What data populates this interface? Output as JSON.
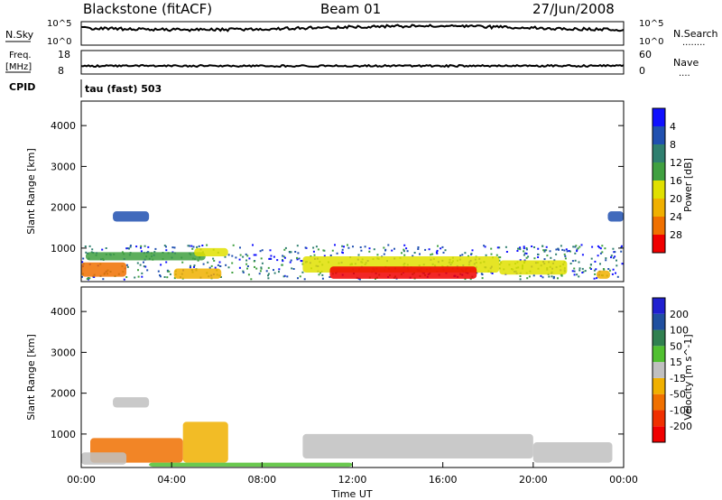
{
  "header": {
    "station": "Blackstone (fitACF)",
    "beam": "Beam 01",
    "date": "27/Jun/2008"
  },
  "panels": {
    "nsky_label": "N.Sky",
    "nsearch_label": "N.Search",
    "nsky_ticks": [
      "10^5",
      "10^0"
    ],
    "nsearch_ticks": [
      "10^5",
      "10^0"
    ],
    "freq_label": "Freq.",
    "freq_unit": "[MHz]",
    "freq_ticks": [
      "18",
      "8"
    ],
    "nave_label": "Nave",
    "nave_ticks": [
      "60",
      "0"
    ],
    "cpid_label": "CPID",
    "cpid_value": "tau (fast) 503"
  },
  "chart_data": [
    {
      "type": "heatmap",
      "name": "power-panel",
      "xlabel": "",
      "ylabel": "Slant Range [km]",
      "xlim": [
        0,
        24
      ],
      "ylim": [
        180,
        4600
      ],
      "yticks": [
        1000,
        2000,
        3000,
        4000
      ],
      "colorbar": {
        "label": "Power [dB]",
        "ticks": [
          "4",
          "8",
          "12",
          "16",
          "20",
          "24",
          "28"
        ],
        "colors": [
          "#1010ff",
          "#2050b0",
          "#2f7f6f",
          "#40a040",
          "#e0e000",
          "#f0b000",
          "#f07000",
          "#f00000"
        ]
      },
      "regions": [
        {
          "t": [
            0.0,
            24.0
          ],
          "r": [
            250,
            1100
          ],
          "level": 2,
          "kind": "speckle"
        },
        {
          "t": [
            1.4,
            3.0
          ],
          "r": [
            1650,
            1900
          ],
          "level": 1
        },
        {
          "t": [
            0.0,
            2.0
          ],
          "r": [
            300,
            650
          ],
          "level": 6
        },
        {
          "t": [
            0.2,
            5.5
          ],
          "r": [
            700,
            900
          ],
          "level": 3
        },
        {
          "t": [
            4.1,
            6.2
          ],
          "r": [
            250,
            500
          ],
          "level": 5
        },
        {
          "t": [
            5.0,
            6.5
          ],
          "r": [
            800,
            1000
          ],
          "level": 4
        },
        {
          "t": [
            9.8,
            18.5
          ],
          "r": [
            400,
            800
          ],
          "level": 4
        },
        {
          "t": [
            11.0,
            17.5
          ],
          "r": [
            250,
            550
          ],
          "level": 7
        },
        {
          "t": [
            18.5,
            21.5
          ],
          "r": [
            350,
            700
          ],
          "level": 4
        },
        {
          "t": [
            22.8,
            23.4
          ],
          "r": [
            250,
            450
          ],
          "level": 5
        },
        {
          "t": [
            23.3,
            24.0
          ],
          "r": [
            1650,
            1900
          ],
          "level": 1
        }
      ]
    },
    {
      "type": "heatmap",
      "name": "velocity-panel",
      "xlabel": "Time UT",
      "ylabel": "Slant Range [km]",
      "xlim": [
        0,
        24
      ],
      "ylim": [
        180,
        4600
      ],
      "xticks": [
        "00:00",
        "04:00",
        "08:00",
        "12:00",
        "16:00",
        "20:00",
        "00:00"
      ],
      "yticks": [
        1000,
        2000,
        3000,
        4000
      ],
      "colorbar": {
        "label": "Velocity [m s^-1]",
        "ticks": [
          "200",
          "100",
          "50",
          "15",
          "-15",
          "-50",
          "-100",
          "-200"
        ],
        "colors": [
          "#2020d0",
          "#2050a0",
          "#308050",
          "#50c030",
          "#c0c0c0",
          "#f0b000",
          "#f07000",
          "#f03000",
          "#f00000"
        ]
      },
      "regions": [
        {
          "t": [
            9.8,
            20.0
          ],
          "r": [
            400,
            1000
          ],
          "level": 4
        },
        {
          "t": [
            20.0,
            23.5
          ],
          "r": [
            300,
            800
          ],
          "level": 4
        },
        {
          "t": [
            0.4,
            4.5
          ],
          "r": [
            300,
            900
          ],
          "level": 6
        },
        {
          "t": [
            4.5,
            6.5
          ],
          "r": [
            300,
            1300
          ],
          "level": 5
        },
        {
          "t": [
            1.4,
            3.0
          ],
          "r": [
            1650,
            1900
          ],
          "level": 4
        },
        {
          "t": [
            3.0,
            12.0
          ],
          "r": [
            200,
            300
          ],
          "level": 3
        },
        {
          "t": [
            0.0,
            2.0
          ],
          "r": [
            250,
            550
          ],
          "level": 4
        }
      ]
    }
  ],
  "legend_dots": {
    "nsearch": "........",
    "nave": "...."
  }
}
